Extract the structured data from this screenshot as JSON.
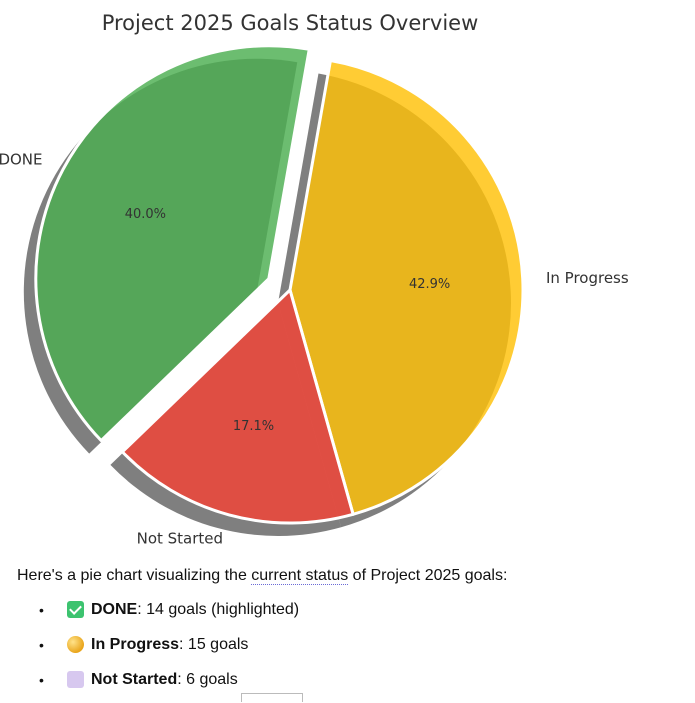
{
  "chart_data": {
    "type": "pie",
    "title": "Project 2025 Goals Status Overview",
    "slices": [
      {
        "label": "In Progress",
        "value": 15,
        "pct_label": "42.9%",
        "color": "#FFC107"
      },
      {
        "label": "Not Started",
        "value": 6,
        "pct_label": "17.1%",
        "color": "#F44336"
      },
      {
        "label": "DONE",
        "value": 14,
        "pct_label": "40.0%",
        "color": "#4CAF50",
        "exploded": true
      }
    ],
    "shadow": true,
    "start_angle_deg": 80,
    "direction": "clockwise"
  },
  "summary": {
    "intro_before": "Here's a pie chart visualizing the ",
    "intro_link": "current status",
    "intro_after": " of Project 2025 goals:",
    "items": [
      {
        "icon": "check-mark-icon",
        "label": "DONE",
        "detail": ": 14 goals (highlighted)"
      },
      {
        "icon": "yellow-circle-icon",
        "label": "In Progress",
        "detail": ": 15 goals"
      },
      {
        "icon": "purple-square-icon",
        "label": "Not Started",
        "detail": ": 6 goals"
      }
    ],
    "bullet": "•"
  }
}
